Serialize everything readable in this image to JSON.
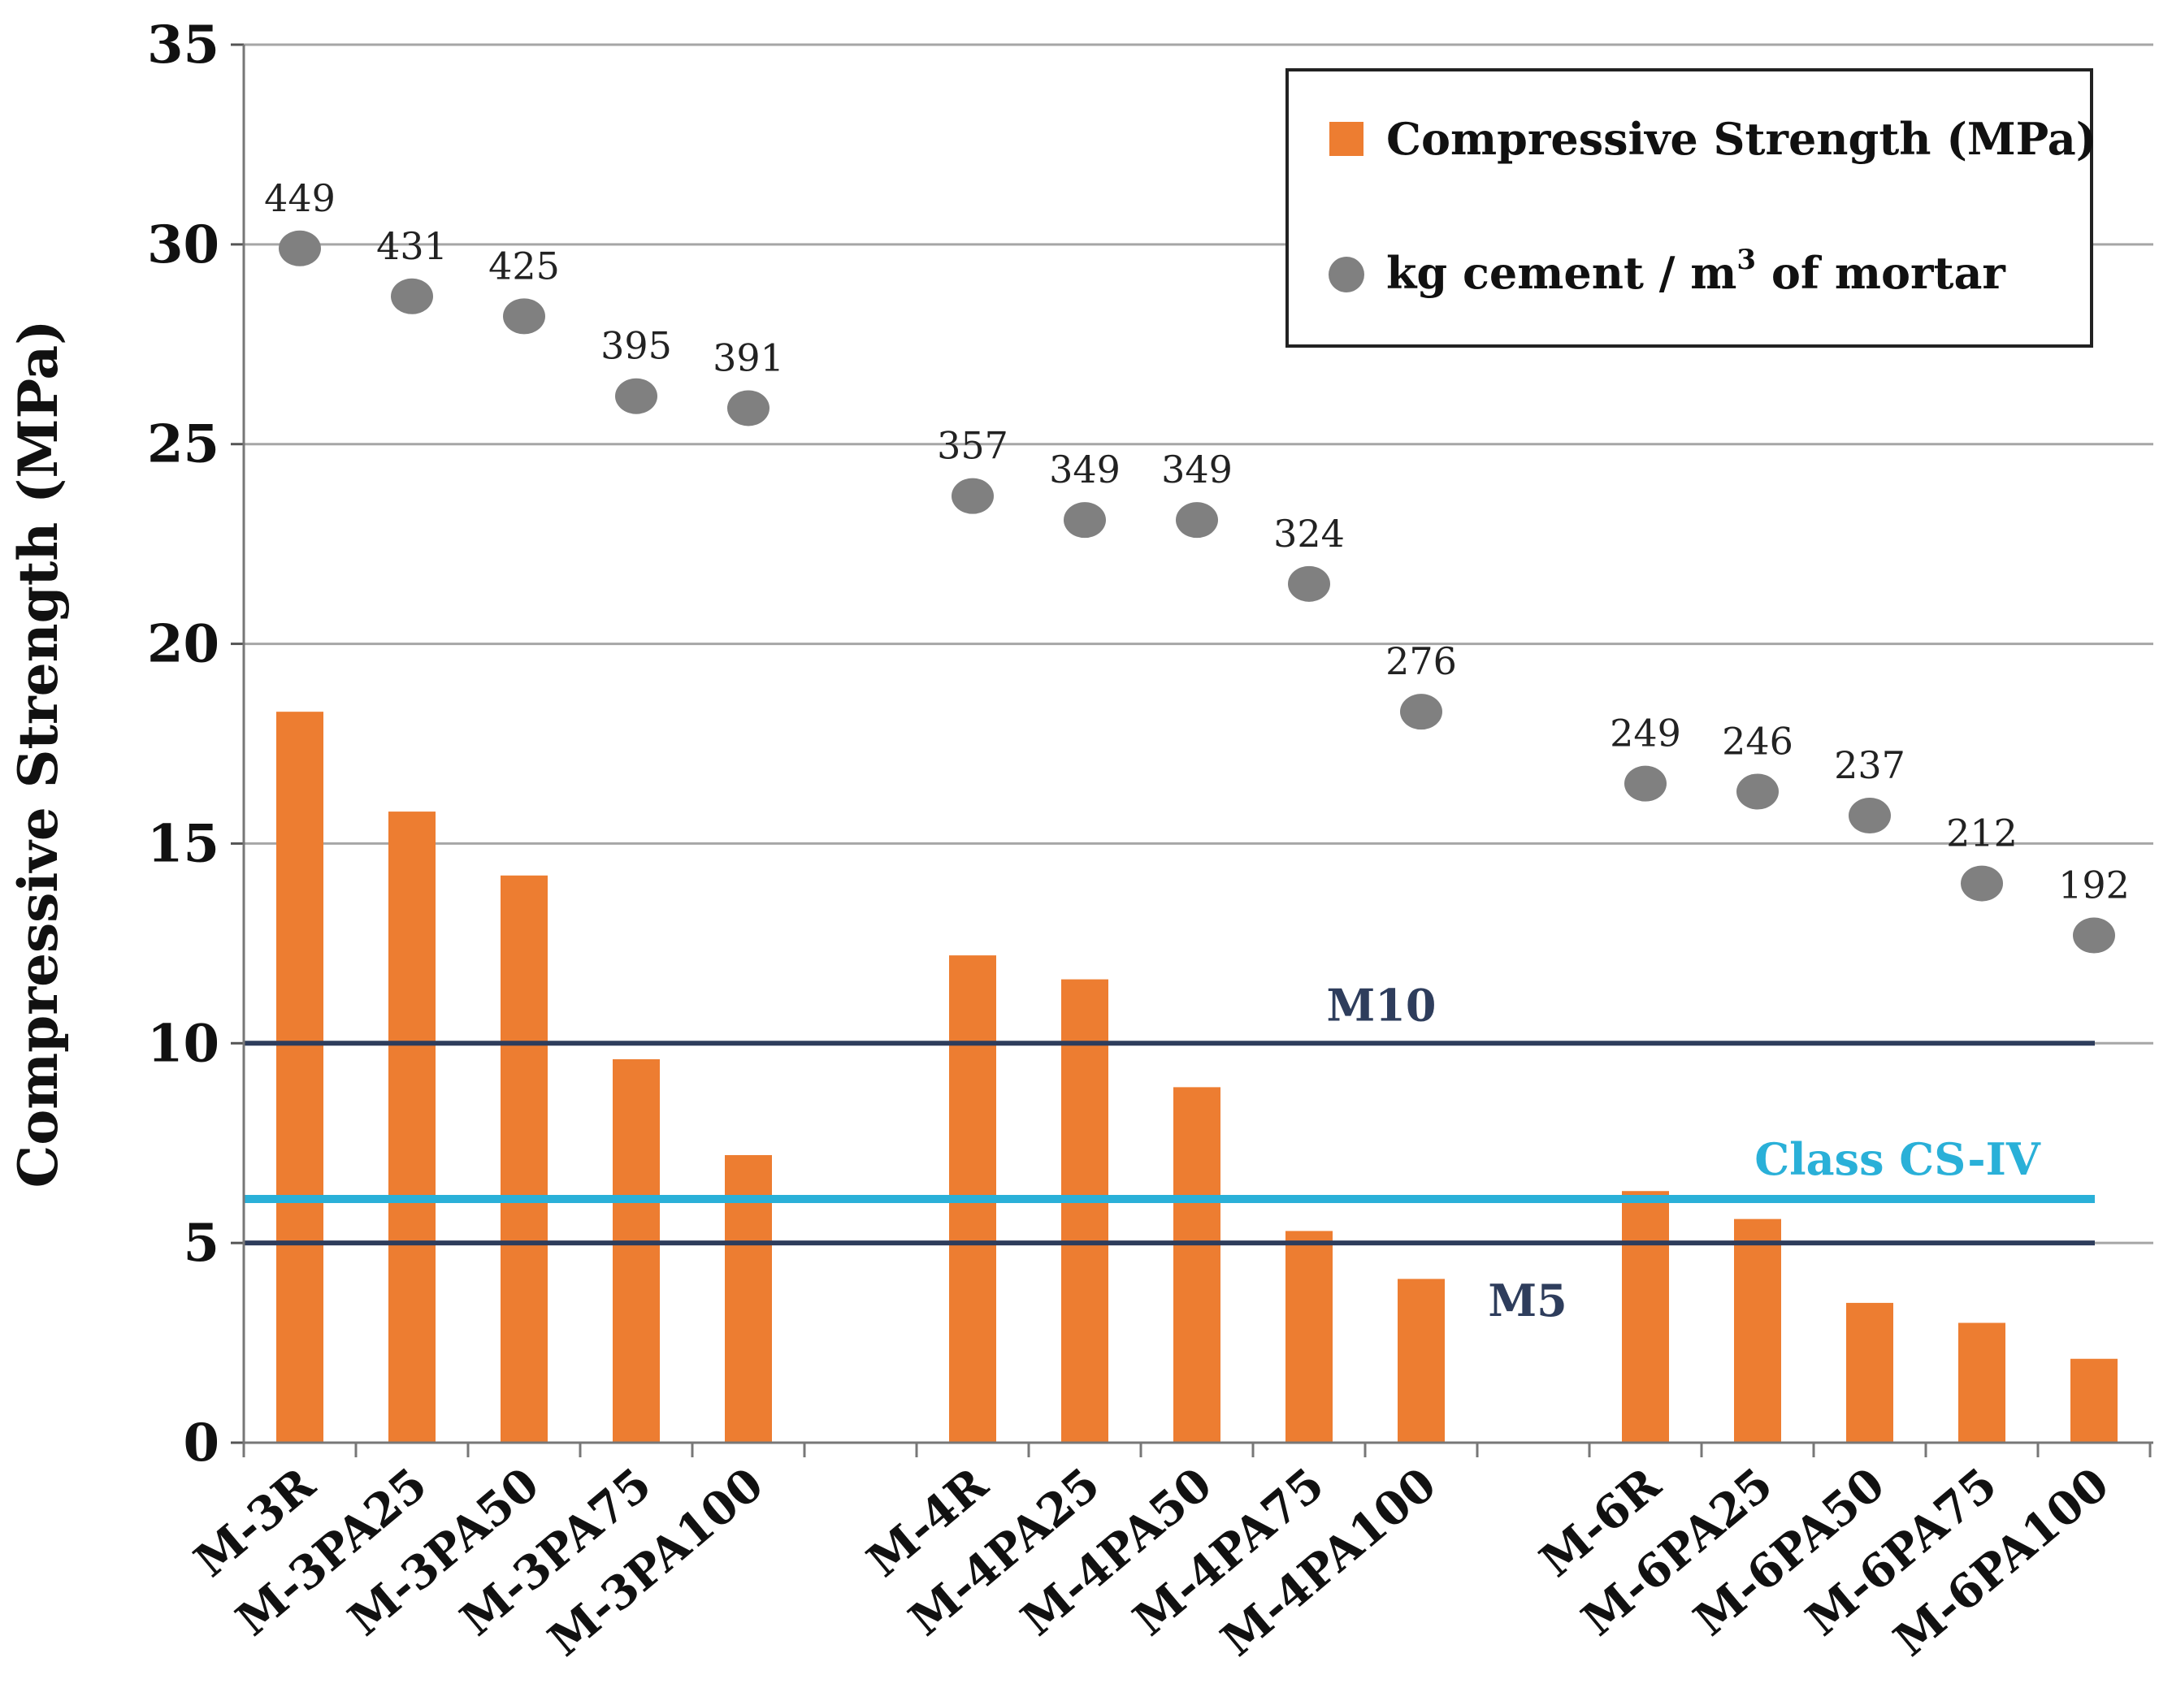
{
  "chart_data": {
    "type": "bar",
    "title": "",
    "xlabel": "",
    "ylabel": "Compressive Strength (MPa)",
    "ylim": [
      0,
      35
    ],
    "yticks": [
      0,
      5,
      10,
      15,
      20,
      25,
      30,
      35
    ],
    "grid": true,
    "legend_position": "top-right",
    "categories": [
      "M-3R",
      "M-3PA25",
      "M-3PA50",
      "M-3PA75",
      "M-3PA100",
      "",
      "M-4R",
      "M-4PA25",
      "M-4PA50",
      "M-4PA75",
      "M-4PA100",
      "",
      "M-6R",
      "M-6PA25",
      "M-6PA50",
      "M-6PA75",
      "M-6PA100"
    ],
    "series": [
      {
        "name": "Compressive Strength (MPa)",
        "kind": "bar",
        "color": "#ed7d31",
        "values": [
          18.3,
          15.8,
          14.2,
          9.6,
          7.2,
          null,
          12.2,
          11.6,
          8.9,
          5.3,
          4.1,
          null,
          6.3,
          5.6,
          3.5,
          3.0,
          2.1
        ]
      },
      {
        "name": "kg cement / m",
        "name_sup": "3",
        "name_suffix": " of mortar",
        "kind": "scatter",
        "color": "#808080",
        "values": [
          29.9,
          28.7,
          28.2,
          26.2,
          25.9,
          null,
          23.7,
          23.1,
          23.1,
          21.5,
          18.3,
          null,
          16.5,
          16.3,
          15.7,
          14.0,
          12.7
        ],
        "labels": [
          "449",
          "431",
          "425",
          "395",
          "391",
          "",
          "357",
          "349",
          "349",
          "324",
          "276",
          "",
          "249",
          "246",
          "237",
          "212",
          "192"
        ]
      }
    ],
    "reference_lines": [
      {
        "label": "M10",
        "value": 10,
        "color": "#2e3d5c"
      },
      {
        "label": "Class CS-IV",
        "value": 6.1,
        "color": "#2ab0d8"
      },
      {
        "label": "M5",
        "value": 5,
        "color": "#2e3d5c"
      }
    ]
  }
}
